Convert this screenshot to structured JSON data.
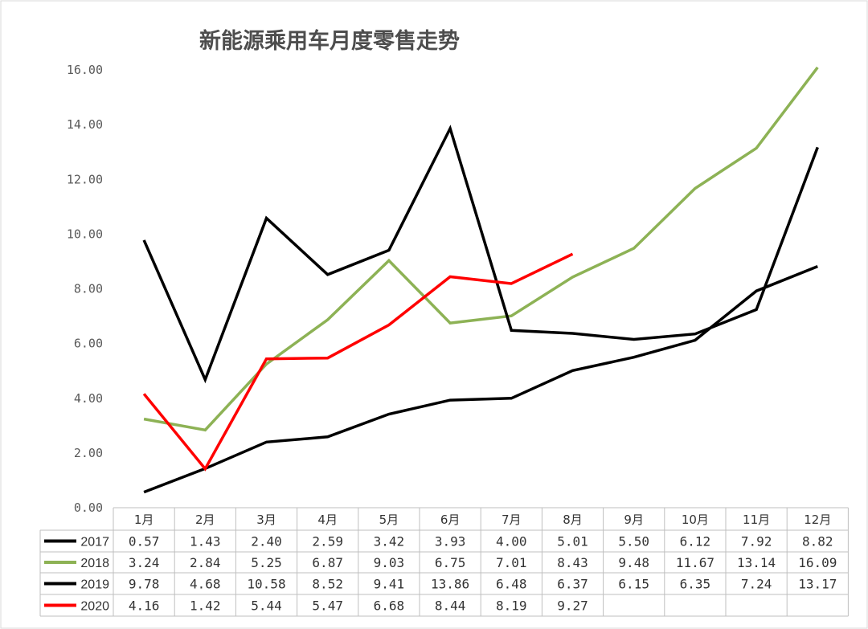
{
  "chart_data": {
    "type": "line",
    "title": "新能源乘用车月度零售走势",
    "categories": [
      "1月",
      "2月",
      "3月",
      "4月",
      "5月",
      "6月",
      "7月",
      "8月",
      "9月",
      "10月",
      "11月",
      "12月"
    ],
    "ylim": [
      0,
      16
    ],
    "yticks": [
      "0.00",
      "2.00",
      "4.00",
      "6.00",
      "8.00",
      "10.00",
      "12.00",
      "14.00",
      "16.00"
    ],
    "grid": false,
    "legend": "data-table-left",
    "series": [
      {
        "name": "2017",
        "color": "#000000",
        "values": [
          0.57,
          1.43,
          2.4,
          2.59,
          3.42,
          3.93,
          4.0,
          5.01,
          5.5,
          6.12,
          7.92,
          8.82
        ],
        "labels": [
          "0.57",
          "1.43",
          "2.40",
          "2.59",
          "3.42",
          "3.93",
          "4.00",
          "5.01",
          "5.50",
          "6.12",
          "7.92",
          "8.82"
        ]
      },
      {
        "name": "2018",
        "color": "#8db255",
        "values": [
          3.24,
          2.84,
          5.25,
          6.87,
          9.03,
          6.75,
          7.01,
          8.43,
          9.48,
          11.67,
          13.14,
          16.09
        ],
        "labels": [
          "3.24",
          "2.84",
          "5.25",
          "6.87",
          "9.03",
          "6.75",
          "7.01",
          "8.43",
          "9.48",
          "11.67",
          "13.14",
          "16.09"
        ]
      },
      {
        "name": "2019",
        "color": "#000000",
        "values": [
          9.78,
          4.68,
          10.58,
          8.52,
          9.41,
          13.86,
          6.48,
          6.37,
          6.15,
          6.35,
          7.24,
          13.17
        ],
        "labels": [
          "9.78",
          "4.68",
          "10.58",
          "8.52",
          "9.41",
          "13.86",
          "6.48",
          "6.37",
          "6.15",
          "6.35",
          "7.24",
          "13.17"
        ]
      },
      {
        "name": "2020",
        "color": "#ff0000",
        "values": [
          4.16,
          1.42,
          5.44,
          5.47,
          6.68,
          8.44,
          8.19,
          9.27,
          null,
          null,
          null,
          null
        ],
        "labels": [
          "4.16",
          "1.42",
          "5.44",
          "5.47",
          "6.68",
          "8.44",
          "8.19",
          "9.27",
          "",
          "",
          "",
          ""
        ]
      }
    ]
  }
}
